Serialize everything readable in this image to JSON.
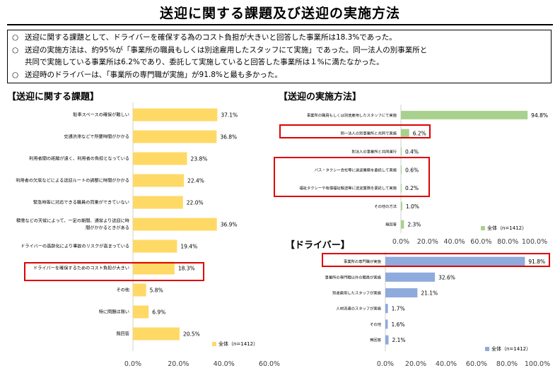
{
  "page": {
    "title": "送迎に関する課題及び送迎の実施方法",
    "summary": [
      {
        "bullet": "○",
        "text": "送迎に関する課題として、ドライバーを確保する為のコスト負担が大きいと回答した事業所は18.3%であった。"
      },
      {
        "bullet": "○",
        "text": "送迎の実施方法は、約95%が「事業所の職員もしくは別途雇用したスタッフにて実施」であった。同一法人の別事業所と"
      },
      {
        "bullet": "",
        "text": "共同で実施している事業所は6.2%であり、委託して実施していると回答した事業所は１%に満たなかった。"
      },
      {
        "bullet": "○",
        "text": "送迎時のドライバーは、「事業所の専門職が実施」が91.8%と最も多かった。"
      }
    ]
  },
  "colors": {
    "issues_bar": "#FFD966",
    "methods_bar": "#A9D18E",
    "drivers_bar": "#8FAADC",
    "highlight": "#E00000"
  },
  "chart_data": [
    {
      "id": "issues",
      "type": "bar",
      "orientation": "horizontal",
      "title": "【送迎に関する課題】",
      "categories": [
        [
          "駐車スペースの確保が難しい"
        ],
        [
          "交通渋滞などで所要時間がかかる"
        ],
        [
          "利用者間の距離が遠く、利用者の負担となっている"
        ],
        [
          "利用者の欠席などによる送迎ルートの調整に時間がかかる"
        ],
        [
          "緊急時等に対応できる職員の同乗ができていない"
        ],
        [
          "積雪などの天候によって、一定の期間、通常より送迎に時",
          "間がかかるときがある"
        ],
        [
          "ドライバーの高齢化により事故のリスクが高まっている"
        ],
        [
          "ドライバーを確保するためのコスト負担が大きい"
        ],
        [
          "その他"
        ],
        [
          "特に問題は無い"
        ],
        [
          "無回答"
        ]
      ],
      "values": [
        37.1,
        36.8,
        23.8,
        22.4,
        22.0,
        36.9,
        19.4,
        18.3,
        5.8,
        6.9,
        20.5
      ],
      "value_labels": [
        "37.1%",
        "36.8%",
        "23.8%",
        "22.4%",
        "22.0%",
        "36.9%",
        "19.4%",
        "18.3%",
        "5.8%",
        "6.9%",
        "20.5%"
      ],
      "xlim": [
        0,
        60
      ],
      "xticks": [
        "0.0%",
        "20.0%",
        "40.0%",
        "60.0%"
      ],
      "legend": {
        "label": "全体（n=1412）",
        "position": "bottom-right"
      },
      "highlighted": [
        7
      ]
    },
    {
      "id": "methods",
      "type": "bar",
      "orientation": "horizontal",
      "title": "【送迎の実施方法】",
      "categories": [
        [
          "事業所の職員もしくは別途雇用したスタッフにて実施"
        ],
        [
          "同一法人の別事業所と共同で実施"
        ],
        [
          "別法人の事業所と共同運行"
        ],
        [
          "バス・タクシー会社等に送迎業務を委託して実施"
        ],
        [
          "福祉タクシーや有償福祉輸送等に送迎業務を委託して実施"
        ],
        [
          "その他の方法"
        ],
        [
          "無回答"
        ]
      ],
      "values": [
        94.8,
        6.2,
        0.4,
        0.6,
        0.2,
        1.0,
        2.3
      ],
      "value_labels": [
        "94.8%",
        "6.2%",
        "0.4%",
        "0.6%",
        "0.2%",
        "1.0%",
        "2.3%"
      ],
      "xlim": [
        0,
        100
      ],
      "xticks": [
        "0.0%",
        "20.0%",
        "40.0%",
        "60.0%",
        "80.0%",
        "100.0%"
      ],
      "legend": {
        "label": "全体（n=1412）",
        "position": "bottom-right"
      },
      "highlighted": [
        1,
        3,
        4
      ]
    },
    {
      "id": "drivers",
      "type": "bar",
      "orientation": "horizontal",
      "title": "【ドライバー】",
      "categories": [
        [
          "事業所の専門職が実施"
        ],
        [
          "事業所の専門職以外の職員が実施"
        ],
        [
          "別途雇用したスタッフが実施"
        ],
        [
          "人材派遣のスタッフが実施"
        ],
        [
          "その他"
        ],
        [
          "無回答"
        ]
      ],
      "values": [
        91.8,
        32.6,
        21.1,
        1.7,
        1.6,
        2.1
      ],
      "value_labels": [
        "91.8%",
        "32.6%",
        "21.1%",
        "1.7%",
        "1.6%",
        "2.1%"
      ],
      "xlim": [
        0,
        100
      ],
      "xticks": [
        "0.0%",
        "20.0%",
        "40.0%",
        "60.0%",
        "80.0%",
        "100.0%"
      ],
      "legend": {
        "label": "全体（n=1412）",
        "position": "bottom-right"
      },
      "highlighted": [
        0
      ]
    }
  ]
}
